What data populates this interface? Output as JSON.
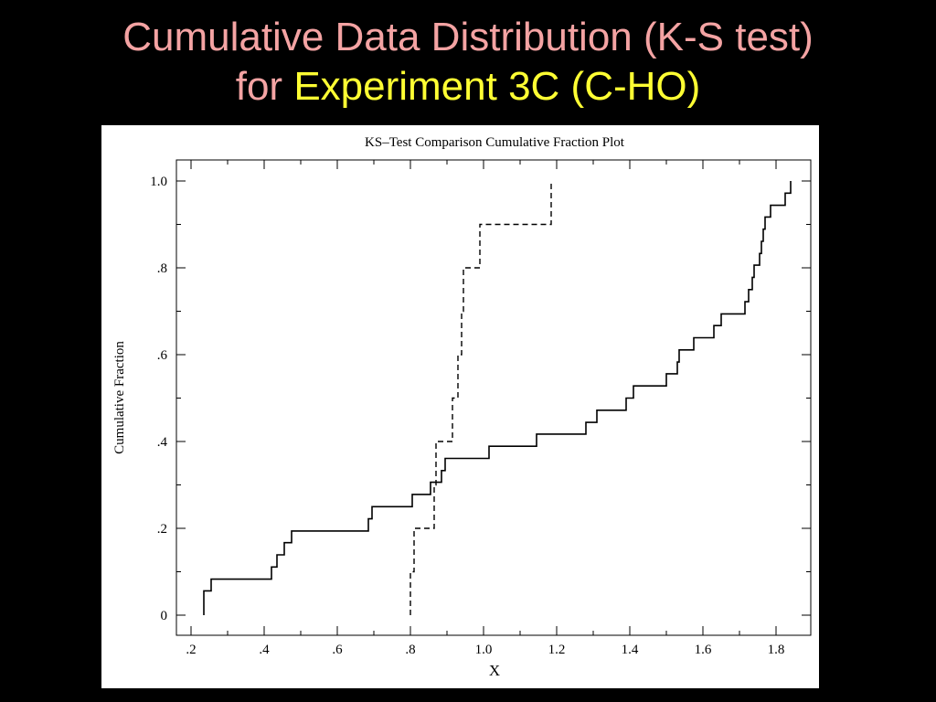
{
  "slide": {
    "title_line1": "Cumulative Data Distribution (K-S test)",
    "title_line2_prefix": "for",
    "title_line2_highlight": "Experiment 3C (C-HO)",
    "title_color": "#F4A3A3",
    "highlight_color": "#FFFF33",
    "background": "#000000"
  },
  "chart_data": {
    "type": "line",
    "title": "KS–Test Comparison Cumulative Fraction Plot",
    "xlabel": "X",
    "ylabel": "Cumulative Fraction",
    "xlim": [
      0.2,
      1.9
    ],
    "ylim": [
      0,
      1.0
    ],
    "x_ticks": [
      0.2,
      0.4,
      0.6,
      0.8,
      1.0,
      1.2,
      1.4,
      1.6,
      1.8
    ],
    "x_tick_labels": [
      ".2",
      ".4",
      ".6",
      ".8",
      "1.0",
      "1.2",
      "1.4",
      "1.6",
      "1.8"
    ],
    "y_ticks": [
      0,
      0.2,
      0.4,
      0.6,
      0.8,
      1.0
    ],
    "y_tick_labels": [
      "0",
      ".2",
      ".4",
      ".6",
      ".8",
      "1.0"
    ],
    "grid": false,
    "series": [
      {
        "style": "solid",
        "color": "#000000",
        "points": [
          [
            0.235,
            0
          ],
          [
            0.235,
            0.056
          ],
          [
            0.255,
            0.056
          ],
          [
            0.255,
            0.083
          ],
          [
            0.42,
            0.083
          ],
          [
            0.42,
            0.111
          ],
          [
            0.435,
            0.111
          ],
          [
            0.435,
            0.139
          ],
          [
            0.455,
            0.139
          ],
          [
            0.455,
            0.167
          ],
          [
            0.475,
            0.167
          ],
          [
            0.475,
            0.194
          ],
          [
            0.685,
            0.194
          ],
          [
            0.685,
            0.222
          ],
          [
            0.695,
            0.222
          ],
          [
            0.695,
            0.25
          ],
          [
            0.805,
            0.25
          ],
          [
            0.805,
            0.278
          ],
          [
            0.855,
            0.278
          ],
          [
            0.855,
            0.306
          ],
          [
            0.885,
            0.306
          ],
          [
            0.885,
            0.333
          ],
          [
            0.895,
            0.333
          ],
          [
            0.895,
            0.361
          ],
          [
            1.015,
            0.361
          ],
          [
            1.015,
            0.389
          ],
          [
            1.145,
            0.389
          ],
          [
            1.145,
            0.417
          ],
          [
            1.28,
            0.417
          ],
          [
            1.28,
            0.444
          ],
          [
            1.31,
            0.444
          ],
          [
            1.31,
            0.472
          ],
          [
            1.39,
            0.472
          ],
          [
            1.39,
            0.5
          ],
          [
            1.41,
            0.5
          ],
          [
            1.41,
            0.528
          ],
          [
            1.5,
            0.528
          ],
          [
            1.5,
            0.556
          ],
          [
            1.53,
            0.556
          ],
          [
            1.53,
            0.583
          ],
          [
            1.535,
            0.583
          ],
          [
            1.535,
            0.611
          ],
          [
            1.575,
            0.611
          ],
          [
            1.575,
            0.639
          ],
          [
            1.63,
            0.639
          ],
          [
            1.63,
            0.667
          ],
          [
            1.65,
            0.667
          ],
          [
            1.65,
            0.694
          ],
          [
            1.715,
            0.694
          ],
          [
            1.715,
            0.722
          ],
          [
            1.725,
            0.722
          ],
          [
            1.725,
            0.75
          ],
          [
            1.735,
            0.75
          ],
          [
            1.735,
            0.778
          ],
          [
            1.74,
            0.778
          ],
          [
            1.74,
            0.806
          ],
          [
            1.755,
            0.806
          ],
          [
            1.755,
            0.833
          ],
          [
            1.76,
            0.833
          ],
          [
            1.76,
            0.861
          ],
          [
            1.765,
            0.861
          ],
          [
            1.765,
            0.889
          ],
          [
            1.77,
            0.889
          ],
          [
            1.77,
            0.917
          ],
          [
            1.785,
            0.917
          ],
          [
            1.785,
            0.944
          ],
          [
            1.825,
            0.944
          ],
          [
            1.825,
            0.972
          ],
          [
            1.84,
            0.972
          ],
          [
            1.84,
            1.0
          ]
        ]
      },
      {
        "style": "dashed",
        "color": "#000000",
        "points": [
          [
            0.8,
            0
          ],
          [
            0.8,
            0.1
          ],
          [
            0.81,
            0.1
          ],
          [
            0.81,
            0.2
          ],
          [
            0.865,
            0.2
          ],
          [
            0.865,
            0.3
          ],
          [
            0.87,
            0.3
          ],
          [
            0.87,
            0.4
          ],
          [
            0.915,
            0.4
          ],
          [
            0.915,
            0.5
          ],
          [
            0.93,
            0.5
          ],
          [
            0.93,
            0.6
          ],
          [
            0.94,
            0.6
          ],
          [
            0.94,
            0.7
          ],
          [
            0.945,
            0.7
          ],
          [
            0.945,
            0.8
          ],
          [
            0.99,
            0.8
          ],
          [
            0.99,
            0.9
          ],
          [
            1.185,
            0.9
          ],
          [
            1.185,
            1.0
          ]
        ]
      }
    ]
  }
}
